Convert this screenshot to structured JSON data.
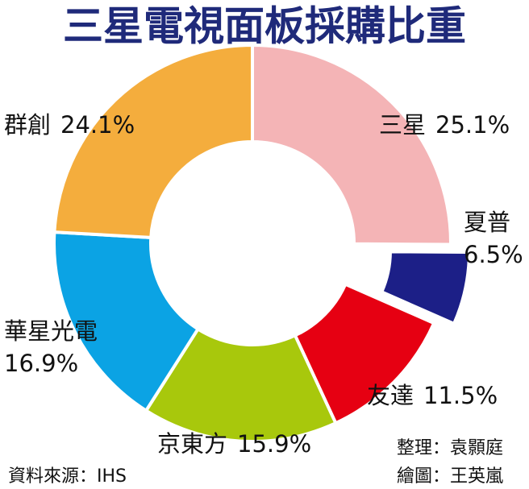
{
  "chart_data": {
    "type": "donut",
    "title": "三星電視面板採購比重",
    "categories": [
      "三星",
      "夏普",
      "友達",
      "京東方",
      "華星光電",
      "群創"
    ],
    "values": [
      25.1,
      6.5,
      11.5,
      15.9,
      16.9,
      24.1
    ],
    "value_labels": [
      "25.1%",
      "6.5%",
      "11.5%",
      "15.9%",
      "16.9%",
      "24.1%"
    ],
    "colors": [
      "#f4b4b6",
      "#1c1f87",
      "#e60012",
      "#a8c80c",
      "#0ba3e4",
      "#f4ad3d"
    ],
    "exploded": [
      "夏普"
    ],
    "source": "資料來源：IHS",
    "credits": [
      "整理：袁顥庭",
      "繪圖：王英嵐"
    ]
  }
}
